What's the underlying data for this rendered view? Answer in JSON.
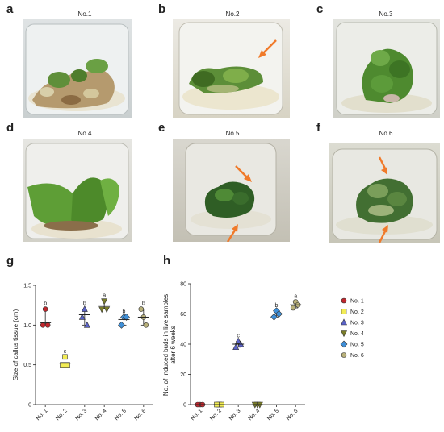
{
  "panels": {
    "a": {
      "letter": "a",
      "title": "No.1"
    },
    "b": {
      "letter": "b",
      "title": "No.2"
    },
    "c": {
      "letter": "c",
      "title": "No.3"
    },
    "d": {
      "letter": "d",
      "title": "No.4"
    },
    "e": {
      "letter": "e",
      "title": "No.5"
    },
    "f": {
      "letter": "f",
      "title": "No.6"
    },
    "g": {
      "letter": "g"
    },
    "h": {
      "letter": "h"
    }
  },
  "colors": {
    "arrow": "#f07a2a"
  },
  "legend": {
    "entries": [
      {
        "label": "No. 1",
        "marker": "circle",
        "color": "#c0272d"
      },
      {
        "label": "No. 2",
        "marker": "square",
        "color": "#f2ec55"
      },
      {
        "label": "No. 3",
        "marker": "triangle-up",
        "color": "#5b63c9"
      },
      {
        "label": "No. 4",
        "marker": "triangle-down",
        "color": "#7a7d2a"
      },
      {
        "label": "No. 5",
        "marker": "diamond",
        "color": "#3f8fd8"
      },
      {
        "label": "No. 6",
        "marker": "circle",
        "color": "#b8b07a"
      }
    ]
  },
  "chart_data": [
    {
      "type": "scatter",
      "panel": "g",
      "ylabel": "Size of callus tissue (cm)",
      "categories": [
        "No. 1",
        "No. 2",
        "No. 3",
        "No. 4",
        "No. 5",
        "No. 6"
      ],
      "ylim": [
        0,
        1.5
      ],
      "yticks": [
        "0",
        "0.5",
        "1.0",
        "1.5"
      ],
      "series": [
        {
          "name": "No. 1",
          "points": [
            1.2,
            1.0,
            1.0
          ],
          "mean": 1.03,
          "sig": "b"
        },
        {
          "name": "No. 2",
          "points": [
            0.6,
            0.5,
            0.5
          ],
          "mean": 0.52,
          "sig": "c"
        },
        {
          "name": "No. 3",
          "points": [
            1.2,
            1.1,
            1.0
          ],
          "mean": 1.13,
          "sig": "b"
        },
        {
          "name": "No. 4",
          "points": [
            1.3,
            1.2,
            1.2
          ],
          "mean": 1.25,
          "sig": "a"
        },
        {
          "name": "No. 5",
          "points": [
            1.1,
            1.0,
            1.1
          ],
          "mean": 1.07,
          "sig": "b"
        },
        {
          "name": "No. 6",
          "points": [
            1.1,
            1.2,
            1.0
          ],
          "mean": 1.1,
          "sig": "b"
        }
      ]
    },
    {
      "type": "scatter",
      "panel": "h",
      "ylabel": "No. of Induced buds in live samples after 6 weeks",
      "ylabel_lines": [
        "No. of Induced buds in live samples",
        "after 6 weeks"
      ],
      "categories": [
        "No. 1",
        "No. 2",
        "No. 3",
        "No. 4",
        "No. 5",
        "No. 6"
      ],
      "ylim": [
        0,
        80
      ],
      "yticks": [
        "0",
        "20",
        "40",
        "60",
        "80"
      ],
      "series": [
        {
          "name": "No. 1",
          "points": [
            0,
            0,
            0
          ],
          "mean": 0,
          "sig": ""
        },
        {
          "name": "No. 2",
          "points": [
            0,
            0,
            0
          ],
          "mean": 0,
          "sig": ""
        },
        {
          "name": "No. 3",
          "points": [
            42,
            38,
            40
          ],
          "mean": 40,
          "sig": "c"
        },
        {
          "name": "No. 4",
          "points": [
            0,
            0,
            0
          ],
          "mean": 0,
          "sig": ""
        },
        {
          "name": "No. 5",
          "points": [
            62,
            58,
            60
          ],
          "mean": 60,
          "sig": "b"
        },
        {
          "name": "No. 6",
          "points": [
            68,
            64,
            66
          ],
          "mean": 66,
          "sig": "a"
        }
      ]
    }
  ]
}
